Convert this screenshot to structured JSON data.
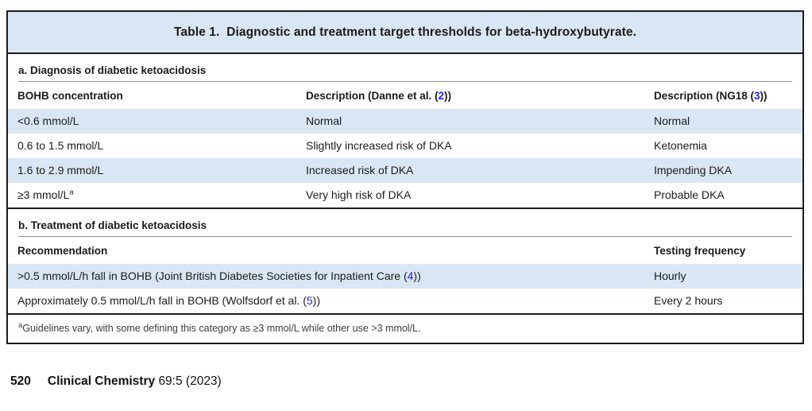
{
  "table": {
    "title": "Table 1.  Diagnostic and treatment target thresholds for beta-hydroxybutyrate.",
    "section_a": {
      "heading": "a. Diagnosis of diabetic ketoacidosis",
      "columns": {
        "col1": "BOHB concentration",
        "col2": {
          "prefix": "Description (Danne et al. (",
          "ref": "2",
          "suffix": "))"
        },
        "col3": {
          "prefix": "Description (NG18 (",
          "ref": "3",
          "suffix": "))"
        }
      },
      "rows": [
        {
          "concentration": "<0.6 mmol/L",
          "sup": "",
          "danne": "Normal",
          "ng18": "Normal"
        },
        {
          "concentration": "0.6 to 1.5 mmol/L",
          "sup": "",
          "danne": "Slightly increased risk of DKA",
          "ng18": "Ketonemia"
        },
        {
          "concentration": "1.6 to 2.9 mmol/L",
          "sup": "",
          "danne": "Increased risk of DKA",
          "ng18": "Impending DKA"
        },
        {
          "concentration": "≥3 mmol/L",
          "sup": "a",
          "danne": "Very high risk of DKA",
          "ng18": "Probable DKA"
        }
      ]
    },
    "section_b": {
      "heading": "b. Treatment of diabetic ketoacidosis",
      "columns": {
        "col1": "Recommendation",
        "col2": "Testing frequency"
      },
      "rows": [
        {
          "prefix": ">0.5 mmol/L/h fall in BOHB (Joint British Diabetes Societies for Inpatient Care (",
          "ref": "4",
          "suffix": "))",
          "frequency": "Hourly"
        },
        {
          "prefix": "Approximately 0.5 mmol/L/h fall in BOHB (Wolfsdorf et al. (",
          "ref": "5",
          "suffix": "))",
          "frequency": "Every 2 hours"
        }
      ]
    },
    "footnote": {
      "marker": "a",
      "text": "Guidelines vary, with some defining this category as ≥3 mmol/L while other use >3 mmol/L."
    }
  },
  "footer": {
    "page_number": "520",
    "journal": "Clinical Chemistry",
    "issue": "69:5 (2023)"
  },
  "colors": {
    "band_blue": "#dbe6f5",
    "row_highlight_blue": "#dbe6f5",
    "border_black": "#1c1c1c",
    "reference_blue": "#2222e0"
  }
}
